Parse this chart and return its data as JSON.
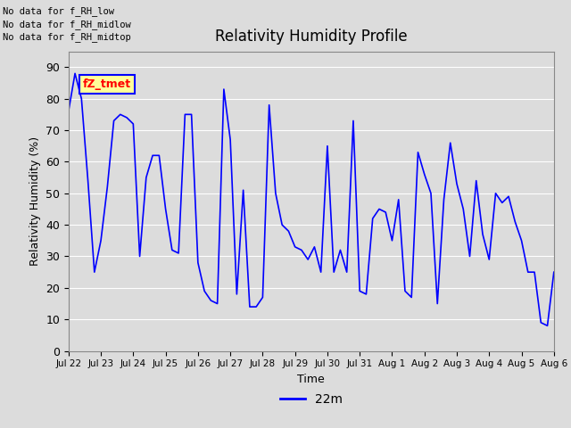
{
  "title": "Relativity Humidity Profile",
  "xlabel": "Time",
  "ylabel": "Relativity Humidity (%)",
  "ylim": [
    0,
    95
  ],
  "yticks": [
    0,
    10,
    20,
    30,
    40,
    50,
    60,
    70,
    80,
    90
  ],
  "line_color": "blue",
  "line_width": 1.2,
  "legend_label": "22m",
  "bg_color": "#dcdcdc",
  "annotations": [
    "No data for f_RH_low",
    "No data for f_RH_midlow",
    "No data for f_RH_midtop"
  ],
  "legend_box_color": "#ffff99",
  "legend_text_color": "red",
  "legend_box_text": "fZ_tmet",
  "tick_labels": [
    "Jul 22",
    "Jul 23",
    "Jul 24",
    "Jul 25",
    "Jul 26",
    "Jul 27",
    "Jul 28",
    "Jul 29",
    "Jul 30",
    "Jul 31",
    "Aug 1",
    "Aug 2",
    "Aug 3",
    "Aug 4",
    "Aug 5",
    "Aug 6"
  ],
  "humidity_values": [
    76,
    88,
    80,
    54,
    25,
    35,
    52,
    73,
    75,
    74,
    72,
    30,
    55,
    62,
    62,
    45,
    32,
    31,
    75,
    75,
    28,
    19,
    16,
    15,
    83,
    67,
    18,
    51,
    14,
    14,
    17,
    78,
    50,
    40,
    38,
    33,
    32,
    29,
    33,
    25,
    65,
    25,
    32,
    25,
    73,
    19,
    18,
    42,
    45,
    44,
    35,
    48,
    19,
    17,
    63,
    56,
    50,
    15,
    48,
    66,
    53,
    45,
    30,
    54,
    37,
    29,
    50,
    47,
    49,
    41,
    35,
    25,
    25,
    9,
    8,
    25
  ],
  "num_points": 76
}
